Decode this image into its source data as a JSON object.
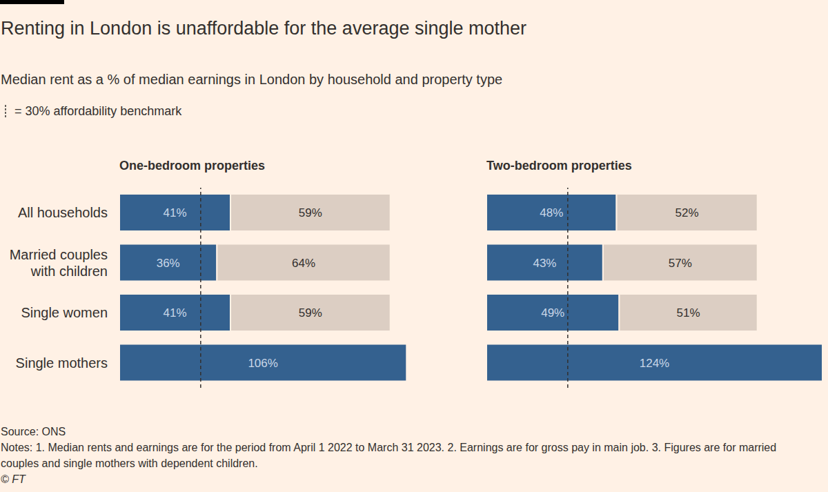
{
  "title": "Renting in London is unaffordable for the average single mother",
  "subtitle": "Median rent as a % of median earnings in London by household and property type",
  "benchmark_label": "= 30% affordability benchmark",
  "source": "Source: ONS",
  "notes": "Notes: 1. Median rents and earnings are for the period from April 1 2022 to March 31 2023. 2. Earnings are for gross pay in main job. 3. Figures are for married couples and single mothers with dependent children.",
  "credit": "© FT",
  "chart_data": [
    {
      "type": "bar",
      "title": "One-bedroom properties",
      "orientation": "horizontal",
      "stacked": true,
      "data_labels": true,
      "tick_labels": "y",
      "benchmark": 30,
      "categories": [
        "All households",
        "Married couples with children",
        "Single women",
        "Single mothers"
      ],
      "series": [
        {
          "color": "#34618f",
          "values": [
            41,
            36,
            41,
            106
          ],
          "value_labels": [
            "41%",
            "36%",
            "41%",
            "106%"
          ]
        },
        {
          "color": "#dccec3",
          "values": [
            59,
            64,
            59,
            null
          ],
          "value_labels": [
            "59%",
            "64%",
            "59%",
            null
          ]
        }
      ]
    },
    {
      "type": "bar",
      "title": "Two-bedroom properties",
      "orientation": "horizontal",
      "stacked": true,
      "data_labels": true,
      "tick_labels": false,
      "benchmark": 30,
      "categories": [
        "All households",
        "Married couples with children",
        "Single women",
        "Single mothers"
      ],
      "series": [
        {
          "color": "#34618f",
          "values": [
            48,
            43,
            49,
            124
          ],
          "value_labels": [
            "48%",
            "43%",
            "49%",
            "124%"
          ]
        },
        {
          "color": "#dccec3",
          "values": [
            52,
            57,
            51,
            null
          ],
          "value_labels": [
            "52%",
            "57%",
            "51%",
            null
          ]
        }
      ]
    }
  ]
}
